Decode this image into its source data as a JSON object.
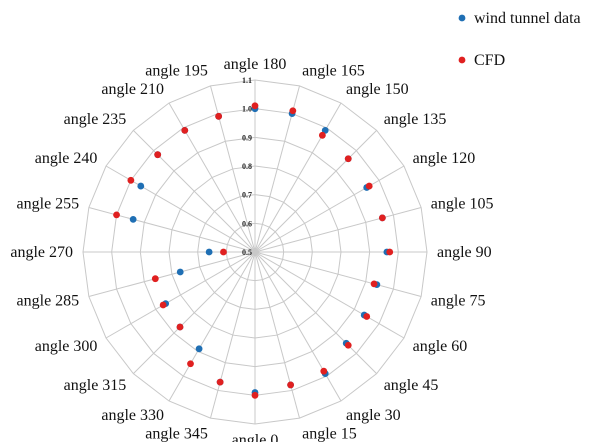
{
  "chart_data": {
    "type": "radar",
    "categories": [
      "angle 180",
      "angle 165",
      "angle 150",
      "angle 135",
      "angle 120",
      "angle 105",
      "angle 90",
      "angle 75",
      "angle 60",
      "angle 45",
      "angle 30",
      "angle 15",
      "angle 0",
      "angle 345",
      "angle 330",
      "angle 315",
      "angle 300",
      "angle 285",
      "angle 270",
      "angle 255",
      "angle 240",
      "angle 235",
      "angle 210",
      "angle 195"
    ],
    "rticks": [
      "0.5",
      "0.6",
      "0.7",
      "0.8",
      "0.9",
      "1.0",
      "1.1"
    ],
    "rlim": [
      0.5,
      1.1
    ],
    "grid": true,
    "legend_position": "top-right",
    "series": [
      {
        "name": "wind tunnel data",
        "color": "#1f6fb4",
        "values": [
          1.0,
          1.0,
          0.99,
          0.96,
          0.95,
          0.96,
          0.96,
          0.94,
          0.94,
          0.95,
          0.99,
          0.98,
          0.99,
          0.97,
          0.89,
          0.87,
          0.86,
          0.77,
          0.66,
          0.94,
          0.96,
          0.98,
          0.99,
          0.99
        ]
      },
      {
        "name": "CFD",
        "color": "#e02020",
        "values": [
          1.01,
          1.01,
          0.97,
          0.96,
          0.96,
          0.96,
          0.97,
          0.93,
          0.95,
          0.96,
          0.98,
          0.98,
          1.0,
          0.97,
          0.95,
          0.87,
          0.87,
          0.86,
          0.61,
          1.0,
          1.0,
          0.98,
          0.99,
          0.99
        ]
      }
    ]
  }
}
